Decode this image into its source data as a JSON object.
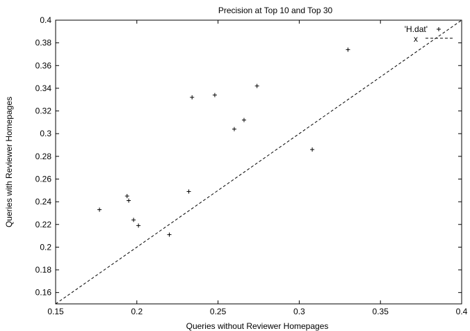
{
  "chart_data": {
    "type": "scatter",
    "title": "Precision at Top 10 and Top 30",
    "xlabel": "Queries without Reviewer Homepages",
    "ylabel": "Queries with Reviewer Homepages",
    "xlim": [
      0.15,
      0.4
    ],
    "ylim": [
      0.15,
      0.4
    ],
    "xticks": [
      0.15,
      0.2,
      0.25,
      0.3,
      0.35,
      0.4
    ],
    "xtick_labels": [
      "0.15",
      "0.2",
      "0.25",
      "0.3",
      "0.35",
      "0.4"
    ],
    "yticks": [
      0.16,
      0.18,
      0.2,
      0.22,
      0.24,
      0.26,
      0.28,
      0.3,
      0.32,
      0.34,
      0.36,
      0.38,
      0.4
    ],
    "ytick_labels": [
      "0.16",
      "0.18",
      "0.2",
      "0.22",
      "0.24",
      "0.26",
      "0.28",
      "0.3",
      "0.32",
      "0.34",
      "0.36",
      "0.38",
      "0.4"
    ],
    "grid": false,
    "legend_position": "top-right",
    "series": [
      {
        "name": "'H.dat'",
        "marker": "+",
        "x": [
          0.177,
          0.194,
          0.195,
          0.198,
          0.201,
          0.22,
          0.232,
          0.234,
          0.248,
          0.26,
          0.266,
          0.274,
          0.308,
          0.33
        ],
        "y": [
          0.233,
          0.245,
          0.241,
          0.224,
          0.219,
          0.211,
          0.249,
          0.332,
          0.334,
          0.304,
          0.312,
          0.342,
          0.286,
          0.374
        ]
      }
    ],
    "reference_line": {
      "style": "dashed",
      "x": [
        0.15,
        0.4
      ],
      "y": [
        0.15,
        0.4
      ]
    },
    "legend_extra": {
      "symbol": "x"
    }
  }
}
